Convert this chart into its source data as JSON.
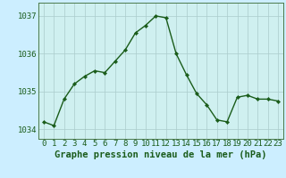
{
  "x": [
    0,
    1,
    2,
    3,
    4,
    5,
    6,
    7,
    8,
    9,
    10,
    11,
    12,
    13,
    14,
    15,
    16,
    17,
    18,
    19,
    20,
    21,
    22,
    23
  ],
  "y": [
    1034.2,
    1034.1,
    1034.8,
    1035.2,
    1035.4,
    1035.55,
    1035.5,
    1035.8,
    1036.1,
    1036.55,
    1036.75,
    1037.0,
    1036.95,
    1036.0,
    1035.45,
    1034.95,
    1034.65,
    1034.25,
    1034.2,
    1034.85,
    1034.9,
    1034.8,
    1034.8,
    1034.75
  ],
  "line_color": "#1a5c1a",
  "marker": "D",
  "markersize": 2.2,
  "linewidth": 1.0,
  "background_color": "#cceeff",
  "plot_bg_color": "#cff0f0",
  "grid_color": "#aacccc",
  "ylabel_ticks": [
    1034,
    1035,
    1036,
    1037
  ],
  "xlabel": "Graphe pression niveau de la mer (hPa)",
  "xlabel_fontsize": 7.5,
  "tick_fontsize": 6.5,
  "ylim": [
    1033.75,
    1037.35
  ],
  "xlim": [
    -0.5,
    23.5
  ],
  "spine_color": "#4a7a4a",
  "bottom_bar_color": "#2a6a2a",
  "bottom_bar_height": 22
}
